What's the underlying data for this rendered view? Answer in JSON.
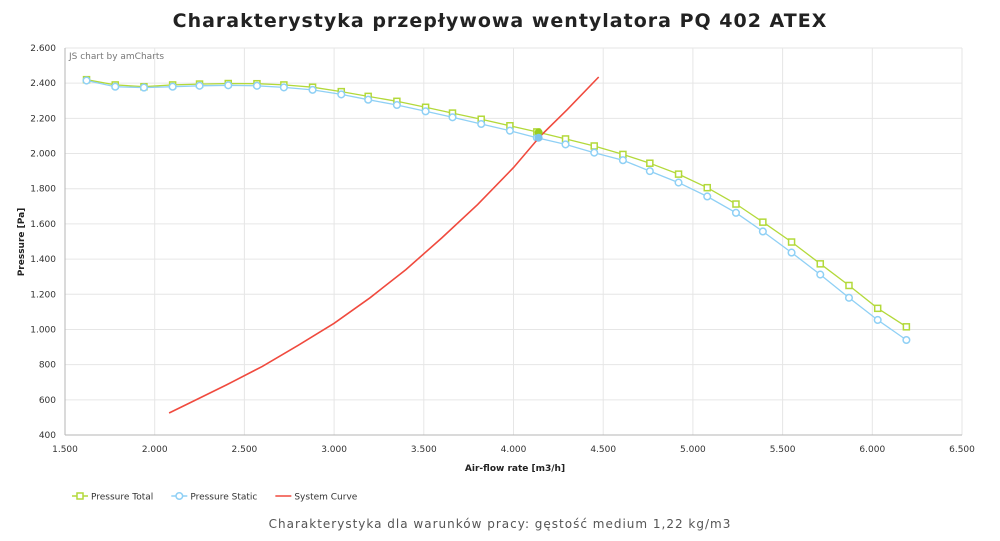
{
  "title": "Charakterystyka przepływowa wentylatora PQ 402 ATEX",
  "caption": "Charakterystyka dla warunków pracy: gęstość medium 1,22 kg/m3",
  "credit": "JS chart by amCharts",
  "chart_data": {
    "type": "line",
    "xlabel": "Air-flow rate [m3/h]",
    "ylabel": "Pressure [Pa]",
    "xlim": [
      1500,
      6500
    ],
    "ylim": [
      400,
      2600
    ],
    "x_ticks": [
      1500,
      2000,
      2500,
      3000,
      3500,
      4000,
      4500,
      5000,
      5500,
      6000,
      6500
    ],
    "x_tick_labels": [
      "1.500",
      "2.000",
      "2.500",
      "3.000",
      "3.500",
      "4.000",
      "4.500",
      "5.000",
      "5.500",
      "6.000",
      "6.500"
    ],
    "y_ticks": [
      400,
      600,
      800,
      1000,
      1200,
      1400,
      1600,
      1800,
      2000,
      2200,
      2400,
      2600
    ],
    "y_tick_labels": [
      "400",
      "600",
      "800",
      "1.000",
      "1.200",
      "1.400",
      "1.600",
      "1.800",
      "2.000",
      "2.200",
      "2.400",
      "2.600"
    ],
    "grid": true,
    "legend_position": "bottom-left",
    "series": [
      {
        "name": "Pressure Total",
        "color": "#b3d93a",
        "marker": "square",
        "x": [
          1620,
          1780,
          1940,
          2100,
          2250,
          2410,
          2570,
          2720,
          2880,
          3040,
          3190,
          3350,
          3510,
          3660,
          3820,
          3980,
          4130,
          4290,
          4450,
          4610,
          4760,
          4920,
          5080,
          5240,
          5390,
          5550,
          5710,
          5870,
          6030,
          6190
        ],
        "y": [
          2420,
          2390,
          2380,
          2390,
          2395,
          2398,
          2397,
          2390,
          2377,
          2352,
          2325,
          2297,
          2263,
          2230,
          2195,
          2158,
          2123,
          2083,
          2043,
          1995,
          1945,
          1883,
          1806,
          1713,
          1610,
          1497,
          1373,
          1250,
          1120,
          1015
        ]
      },
      {
        "name": "Pressure Static",
        "color": "#8fd0f5",
        "marker": "circle",
        "x": [
          1620,
          1780,
          1940,
          2100,
          2250,
          2410,
          2570,
          2720,
          2880,
          3040,
          3190,
          3350,
          3510,
          3660,
          3820,
          3980,
          4130,
          4290,
          4450,
          4610,
          4760,
          4920,
          5080,
          5240,
          5390,
          5550,
          5710,
          5870,
          6030,
          6190
        ],
        "y": [
          2415,
          2380,
          2375,
          2380,
          2385,
          2388,
          2385,
          2376,
          2362,
          2336,
          2306,
          2276,
          2240,
          2206,
          2168,
          2130,
          2090,
          2052,
          2005,
          1962,
          1900,
          1835,
          1756,
          1663,
          1557,
          1437,
          1312,
          1180,
          1054,
          940
        ]
      },
      {
        "name": "System Curve",
        "color": "#f04a3e",
        "marker": "none",
        "x": [
          2080,
          2200,
          2400,
          2600,
          2800,
          3000,
          3200,
          3400,
          3600,
          3800,
          4000,
          4150,
          4300,
          4475
        ],
        "y": [
          525,
          585,
          685,
          790,
          910,
          1035,
          1180,
          1340,
          1520,
          1710,
          1920,
          2100,
          2250,
          2435
        ]
      }
    ],
    "operating_point": {
      "x": 4140,
      "total": 2120,
      "static": 2090
    }
  }
}
